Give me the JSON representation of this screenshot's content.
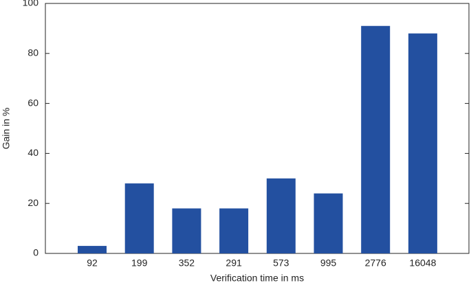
{
  "chart_data": {
    "type": "bar",
    "x_label": "Verification time in ms",
    "y_label": "Gain in %",
    "categories": [
      "92",
      "199",
      "352",
      "291",
      "573",
      "995",
      "2776",
      "16048"
    ],
    "values": [
      3,
      28,
      18,
      18,
      30,
      24,
      91,
      88
    ],
    "color": "#2350a0",
    "ylim": [
      0,
      100
    ],
    "yticks": [
      0,
      20,
      40,
      60,
      80,
      100
    ]
  }
}
